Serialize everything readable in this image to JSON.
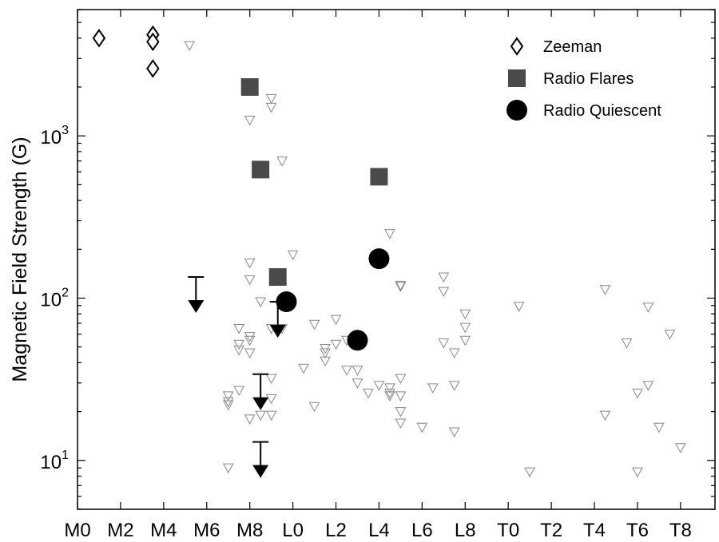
{
  "chart_data": {
    "type": "scatter",
    "title": "",
    "xlabel": "",
    "ylabel": "Magnetic Field Strength  (G)",
    "xscale": "categorical spectral type (M0-T9)",
    "yscale": "log",
    "xlim": [
      0,
      29.6
    ],
    "ylim": [
      5,
      6000
    ],
    "x_tick_positions": [
      0,
      2,
      4,
      6,
      8,
      10,
      12,
      14,
      16,
      18,
      20,
      22,
      24,
      26,
      28
    ],
    "x_tick_labels": [
      "M0",
      "M2",
      "M4",
      "M6",
      "M8",
      "L0",
      "L2",
      "L4",
      "L6",
      "L8",
      "T0",
      "T2",
      "T4",
      "T6",
      "T8"
    ],
    "y_ticks": [
      {
        "value": 10,
        "base": "10",
        "exp": "1"
      },
      {
        "value": 100,
        "base": "10",
        "exp": "2"
      },
      {
        "value": 1000,
        "base": "10",
        "exp": "3"
      }
    ],
    "legend_position": "top-right",
    "series": [
      {
        "name": "Zeeman",
        "marker": "diamond-open",
        "color": "#000000",
        "points": [
          [
            1.0,
            4000
          ],
          [
            3.5,
            4200
          ],
          [
            3.5,
            3800
          ],
          [
            3.5,
            2600
          ]
        ]
      },
      {
        "name": "Radio Flares",
        "marker": "square-filled",
        "color": "#4a4a4a",
        "points": [
          [
            8.0,
            2000
          ],
          [
            8.5,
            620
          ],
          [
            9.3,
            135
          ],
          [
            14.0,
            560
          ]
        ]
      },
      {
        "name": "Radio Quiescent",
        "marker": "circle-filled",
        "color": "#000000",
        "points": [
          [
            9.7,
            95
          ],
          [
            14.0,
            175
          ],
          [
            13.0,
            55
          ]
        ]
      },
      {
        "name": "",
        "marker": "triangle-down-open",
        "color": "#888888",
        "points": [
          [
            5.2,
            3600
          ],
          [
            8.0,
            1250
          ],
          [
            9.0,
            1700
          ],
          [
            9.0,
            1500
          ],
          [
            9.5,
            700
          ],
          [
            8.0,
            165
          ],
          [
            10.0,
            185
          ],
          [
            8.0,
            130
          ],
          [
            8.5,
            95
          ],
          [
            9.0,
            65
          ],
          [
            9.3,
            62
          ],
          [
            9.5,
            65
          ],
          [
            7.5,
            65
          ],
          [
            7.5,
            52
          ],
          [
            7.5,
            48
          ],
          [
            8.0,
            58
          ],
          [
            8.0,
            55
          ],
          [
            8.0,
            46
          ],
          [
            7.0,
            25
          ],
          [
            7.0,
            23
          ],
          [
            7.0,
            22
          ],
          [
            7.5,
            27
          ],
          [
            7.0,
            9
          ],
          [
            8.0,
            18
          ],
          [
            8.5,
            19
          ],
          [
            9.0,
            19
          ],
          [
            9.0,
            32
          ],
          [
            9.0,
            24
          ],
          [
            10.5,
            37
          ],
          [
            11.0,
            69
          ],
          [
            11.0,
            21.5
          ],
          [
            11.5,
            49
          ],
          [
            11.5,
            46
          ],
          [
            11.5,
            41
          ],
          [
            12.0,
            74
          ],
          [
            12.0,
            52
          ],
          [
            12.5,
            55
          ],
          [
            12.5,
            36
          ],
          [
            13.0,
            36
          ],
          [
            13.0,
            30
          ],
          [
            13.0,
            52
          ],
          [
            13.5,
            26
          ],
          [
            14.5,
            250
          ],
          [
            14.0,
            29
          ],
          [
            14.5,
            28
          ],
          [
            14.5,
            26
          ],
          [
            14.5,
            25
          ],
          [
            15.0,
            32
          ],
          [
            15.0,
            25
          ],
          [
            15.0,
            20
          ],
          [
            15.0,
            17
          ],
          [
            15.0,
            120
          ],
          [
            15.0,
            118
          ],
          [
            16.0,
            16
          ],
          [
            16.5,
            28
          ],
          [
            17.0,
            135
          ],
          [
            17.0,
            110
          ],
          [
            17.0,
            53
          ],
          [
            17.5,
            46
          ],
          [
            17.5,
            29
          ],
          [
            17.5,
            15
          ],
          [
            18.0,
            80
          ],
          [
            18.0,
            66
          ],
          [
            18.0,
            55
          ],
          [
            20.5,
            89
          ],
          [
            21.0,
            8.5
          ],
          [
            24.5,
            113
          ],
          [
            24.5,
            19
          ],
          [
            25.5,
            53
          ],
          [
            26.0,
            26
          ],
          [
            26.0,
            8.5
          ],
          [
            26.5,
            88
          ],
          [
            26.5,
            29
          ],
          [
            27.0,
            16
          ],
          [
            27.5,
            60
          ],
          [
            28.0,
            12
          ]
        ]
      },
      {
        "name": "",
        "marker": "upper-limit-arrow",
        "color": "#000000",
        "points": [
          [
            5.5,
            135
          ],
          [
            9.3,
            95
          ],
          [
            8.5,
            34
          ],
          [
            8.5,
            13
          ]
        ]
      }
    ],
    "legend": [
      {
        "label": "Zeeman",
        "marker": "diamond-open"
      },
      {
        "label": "Radio Flares",
        "marker": "square-filled"
      },
      {
        "label": "Radio Quiescent",
        "marker": "circle-filled"
      }
    ]
  }
}
